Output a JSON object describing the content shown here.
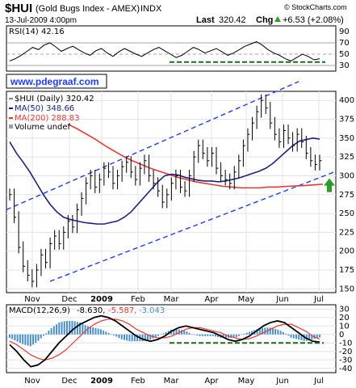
{
  "header": {
    "symbol": "$HUI",
    "name": "(Gold Bugs Index - AMEX)",
    "exchange": "INDX",
    "date": "13-Jul-2009 4:00pm",
    "last_label": "Last",
    "last": "320.42",
    "chg_label": "Chg",
    "chg": "+6.53 (+2.08%)",
    "chg_arrow": "up-triangle-icon",
    "copyright": "© StockCharts.com",
    "watermark": "www.pdegraaf.com"
  },
  "colors": {
    "price": "#000000",
    "ma50": "#1a237e",
    "ma200": "#e53935",
    "channel": "#1f3bff",
    "support": "#1b6b1b",
    "macd_hist": "#4a90c8",
    "arrow": "#2a9d2a"
  },
  "chart_data": [
    {
      "type": "line",
      "title": "RSI(14) 42.16",
      "y_ticks": [
        "90",
        "70",
        "50",
        "30"
      ],
      "ylim": [
        20,
        100
      ],
      "reference_lines": [
        70,
        50,
        30
      ],
      "support_line": {
        "from": "Mar",
        "to": "Jul",
        "value": 36
      },
      "series": [
        {
          "name": "RSI(14)",
          "values": [
            38,
            42,
            48,
            55,
            62,
            58,
            66,
            70,
            63,
            55,
            60,
            64,
            58,
            52,
            48,
            56,
            60,
            52,
            46,
            54,
            60,
            55,
            50,
            46,
            52,
            58,
            62,
            56,
            50,
            44,
            48,
            55,
            62,
            58,
            52,
            56,
            60,
            54,
            48,
            52,
            58,
            64,
            68,
            72,
            66,
            58,
            52,
            48,
            42,
            38,
            44,
            50,
            46,
            40,
            42
          ]
        }
      ]
    },
    {
      "type": "line",
      "title": "$HUI (Daily) 320.42",
      "x_ticks": [
        "Nov",
        "Dec",
        "2009",
        "Feb",
        "Mar",
        "Apr",
        "May",
        "Jun",
        "Jul"
      ],
      "y_ticks": [
        "400",
        "375",
        "350",
        "325",
        "300",
        "275",
        "250",
        "225",
        "200",
        "175",
        "150"
      ],
      "ylim": [
        145,
        412
      ],
      "grid": true,
      "legend_position": "top-left",
      "legend": [
        {
          "label": "$HUI (Daily) 320.42"
        },
        {
          "label": "MA(50) 348.66"
        },
        {
          "label": "MA(200) 288.83"
        },
        {
          "label": "Volume undef"
        }
      ],
      "price_closes": [
        275,
        245,
        205,
        180,
        168,
        160,
        175,
        195,
        185,
        210,
        220,
        210,
        225,
        240,
        232,
        255,
        270,
        290,
        300,
        285,
        295,
        310,
        305,
        290,
        300,
        312,
        318,
        305,
        295,
        310,
        320,
        300,
        290,
        280,
        265,
        275,
        290,
        300,
        285,
        280,
        300,
        325,
        340,
        330,
        320,
        330,
        310,
        300,
        295,
        290,
        305,
        320,
        340,
        355,
        370,
        385,
        400,
        390,
        370,
        355,
        345,
        360,
        350,
        340,
        355,
        345,
        330,
        320,
        315,
        320
      ],
      "ma50": [
        345,
        330,
        318,
        305,
        290,
        275,
        262,
        252,
        245,
        242,
        240,
        238,
        237,
        236,
        236,
        238,
        240,
        245,
        252,
        262,
        272,
        282,
        292,
        300,
        302,
        301,
        298,
        296,
        294,
        293,
        293,
        292,
        293,
        295,
        297,
        300,
        303,
        306,
        310,
        316,
        324,
        332,
        340,
        346,
        348,
        350,
        348.66
      ],
      "ma200": [
        368,
        362,
        355,
        348,
        340,
        333,
        326,
        320,
        315,
        310,
        306,
        302,
        298,
        295,
        292,
        290,
        288,
        286,
        285,
        284,
        284,
        284,
        285,
        285,
        286,
        286.5,
        287,
        288,
        288.83
      ],
      "channel_upper": {
        "from": "Oct",
        "to": "Jul",
        "y0": 255,
        "y1": 425
      },
      "channel_lower": {
        "from": "Nov",
        "to": "Jul",
        "y0": 160,
        "y1": 305
      },
      "marker": {
        "type": "up-arrow",
        "at": "Jul",
        "value": 288
      }
    },
    {
      "type": "line",
      "title": "MACD(12,26,9)",
      "title_values": [
        "-8.630,",
        "-5.587,",
        "-3.043"
      ],
      "x_ticks": [
        "Nov",
        "Dec",
        "2009",
        "Feb",
        "Mar",
        "Apr",
        "May",
        "Jun",
        "Jul"
      ],
      "y_ticks": [
        "30",
        "20",
        "10",
        "0",
        "-10",
        "-20",
        "-30",
        "-40"
      ],
      "ylim": [
        -45,
        35
      ],
      "support_line": {
        "from": "Mar",
        "to": "Jul",
        "value": -10
      },
      "series": [
        {
          "name": "MACD",
          "values": [
            -12,
            -20,
            -30,
            -38,
            -36,
            -30,
            -20,
            -10,
            -2,
            6,
            12,
            16,
            20,
            22,
            20,
            16,
            10,
            4,
            -2,
            -6,
            -8,
            -6,
            -2,
            4,
            8,
            10,
            8,
            6,
            4,
            2,
            -2,
            -6,
            -8,
            -6,
            -2,
            4,
            10,
            14,
            16,
            14,
            8,
            2,
            -4,
            -8,
            -9
          ]
        },
        {
          "name": "Signal",
          "values": [
            -8,
            -12,
            -18,
            -24,
            -28,
            -30,
            -28,
            -24,
            -18,
            -10,
            -2,
            6,
            12,
            16,
            18,
            18,
            16,
            12,
            6,
            2,
            -2,
            -4,
            -4,
            -2,
            2,
            6,
            8,
            8,
            6,
            4,
            2,
            -2,
            -4,
            -6,
            -5,
            -2,
            2,
            6,
            10,
            12,
            12,
            8,
            4,
            -2,
            -5.5
          ]
        }
      ]
    }
  ]
}
